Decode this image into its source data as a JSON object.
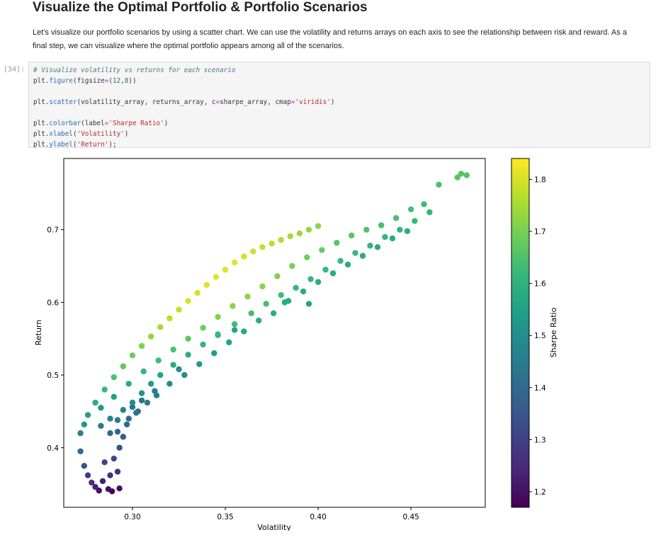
{
  "notebook": {
    "heading": "Visualize the Optimal Portfolio & Portfolio Scenarios",
    "paragraph": "Let's visualize our portfolio scenarios by using a scatter chart. We can use the volatility and returns arrays on each axis to see the relationship between risk and reward. As a final step, we can visualize where the optimal portfolio appears among all of the scenarios.",
    "cell_prompt": "[34]:",
    "code_lines": [
      "# Visualize volatility vs returns for each scenario",
      "plt.figure(figsize=(12,8))",
      "",
      "plt.scatter(volatility_array, returns_array, c=sharpe_array, cmap='viridis')",
      "",
      "plt.colorbar(label='Sharpe Ratio')",
      "plt.xlabel('Volatility')",
      "plt.ylabel('Return');"
    ]
  },
  "colors": {
    "viridis": [
      "#440154",
      "#482878",
      "#3e4989",
      "#31688e",
      "#26828e",
      "#1f9e89",
      "#35b779",
      "#6ece58",
      "#b5de2b",
      "#fde725"
    ]
  },
  "chart_data": {
    "type": "scatter",
    "title": "",
    "xlabel": "Volatility",
    "ylabel": "Return",
    "colorbar_label": "Sharpe Ratio",
    "colormap": "viridis",
    "xlim": [
      0.263,
      0.49
    ],
    "ylim": [
      0.318,
      0.798
    ],
    "clim": [
      1.17,
      1.84
    ],
    "xticks": [
      0.3,
      0.35,
      0.4,
      0.45
    ],
    "xtick_labels": [
      "0.30",
      "0.35",
      "0.40",
      "0.45"
    ],
    "yticks": [
      0.4,
      0.5,
      0.6,
      0.7
    ],
    "ytick_labels": [
      "0.4",
      "0.5",
      "0.6",
      "0.7"
    ],
    "cticks": [
      1.2,
      1.3,
      1.4,
      1.5,
      1.6,
      1.7,
      1.8
    ],
    "ctick_labels": [
      "1.2",
      "1.3",
      "1.4",
      "1.5",
      "1.6",
      "1.7",
      "1.8"
    ],
    "grid": false,
    "points": [
      {
        "x": 0.272,
        "y": 0.395,
        "c": 1.4
      },
      {
        "x": 0.274,
        "y": 0.375,
        "c": 1.34
      },
      {
        "x": 0.276,
        "y": 0.362,
        "c": 1.29
      },
      {
        "x": 0.278,
        "y": 0.352,
        "c": 1.26
      },
      {
        "x": 0.28,
        "y": 0.346,
        "c": 1.23
      },
      {
        "x": 0.282,
        "y": 0.341,
        "c": 1.2
      },
      {
        "x": 0.287,
        "y": 0.343,
        "c": 1.2
      },
      {
        "x": 0.289,
        "y": 0.34,
        "c": 1.18
      },
      {
        "x": 0.293,
        "y": 0.344,
        "c": 1.19
      },
      {
        "x": 0.284,
        "y": 0.354,
        "c": 1.23
      },
      {
        "x": 0.288,
        "y": 0.362,
        "c": 1.26
      },
      {
        "x": 0.292,
        "y": 0.367,
        "c": 1.27
      },
      {
        "x": 0.285,
        "y": 0.38,
        "c": 1.31
      },
      {
        "x": 0.29,
        "y": 0.385,
        "c": 1.31
      },
      {
        "x": 0.272,
        "y": 0.42,
        "c": 1.46
      },
      {
        "x": 0.274,
        "y": 0.432,
        "c": 1.52
      },
      {
        "x": 0.276,
        "y": 0.445,
        "c": 1.55
      },
      {
        "x": 0.28,
        "y": 0.462,
        "c": 1.59
      },
      {
        "x": 0.285,
        "y": 0.48,
        "c": 1.62
      },
      {
        "x": 0.29,
        "y": 0.497,
        "c": 1.65
      },
      {
        "x": 0.295,
        "y": 0.512,
        "c": 1.67
      },
      {
        "x": 0.3,
        "y": 0.527,
        "c": 1.69
      },
      {
        "x": 0.305,
        "y": 0.54,
        "c": 1.71
      },
      {
        "x": 0.31,
        "y": 0.553,
        "c": 1.73
      },
      {
        "x": 0.315,
        "y": 0.566,
        "c": 1.75
      },
      {
        "x": 0.32,
        "y": 0.578,
        "c": 1.77
      },
      {
        "x": 0.325,
        "y": 0.59,
        "c": 1.78
      },
      {
        "x": 0.33,
        "y": 0.602,
        "c": 1.8
      },
      {
        "x": 0.335,
        "y": 0.613,
        "c": 1.8
      },
      {
        "x": 0.34,
        "y": 0.624,
        "c": 1.81
      },
      {
        "x": 0.345,
        "y": 0.635,
        "c": 1.81
      },
      {
        "x": 0.35,
        "y": 0.645,
        "c": 1.81
      },
      {
        "x": 0.355,
        "y": 0.655,
        "c": 1.81
      },
      {
        "x": 0.36,
        "y": 0.663,
        "c": 1.8
      },
      {
        "x": 0.365,
        "y": 0.67,
        "c": 1.79
      },
      {
        "x": 0.37,
        "y": 0.676,
        "c": 1.78
      },
      {
        "x": 0.375,
        "y": 0.681,
        "c": 1.77
      },
      {
        "x": 0.38,
        "y": 0.686,
        "c": 1.76
      },
      {
        "x": 0.385,
        "y": 0.691,
        "c": 1.75
      },
      {
        "x": 0.39,
        "y": 0.695,
        "c": 1.74
      },
      {
        "x": 0.395,
        "y": 0.7,
        "c": 1.73
      },
      {
        "x": 0.4,
        "y": 0.705,
        "c": 1.72
      },
      {
        "x": 0.283,
        "y": 0.455,
        "c": 1.52
      },
      {
        "x": 0.29,
        "y": 0.47,
        "c": 1.55
      },
      {
        "x": 0.298,
        "y": 0.488,
        "c": 1.58
      },
      {
        "x": 0.306,
        "y": 0.505,
        "c": 1.61
      },
      {
        "x": 0.314,
        "y": 0.52,
        "c": 1.63
      },
      {
        "x": 0.322,
        "y": 0.535,
        "c": 1.65
      },
      {
        "x": 0.33,
        "y": 0.55,
        "c": 1.67
      },
      {
        "x": 0.338,
        "y": 0.565,
        "c": 1.69
      },
      {
        "x": 0.346,
        "y": 0.58,
        "c": 1.71
      },
      {
        "x": 0.354,
        "y": 0.595,
        "c": 1.72
      },
      {
        "x": 0.362,
        "y": 0.608,
        "c": 1.72
      },
      {
        "x": 0.37,
        "y": 0.622,
        "c": 1.72
      },
      {
        "x": 0.378,
        "y": 0.636,
        "c": 1.71
      },
      {
        "x": 0.386,
        "y": 0.65,
        "c": 1.7
      },
      {
        "x": 0.394,
        "y": 0.662,
        "c": 1.69
      },
      {
        "x": 0.402,
        "y": 0.672,
        "c": 1.68
      },
      {
        "x": 0.41,
        "y": 0.682,
        "c": 1.66
      },
      {
        "x": 0.418,
        "y": 0.692,
        "c": 1.66
      },
      {
        "x": 0.426,
        "y": 0.7,
        "c": 1.65
      },
      {
        "x": 0.434,
        "y": 0.706,
        "c": 1.64
      },
      {
        "x": 0.442,
        "y": 0.716,
        "c": 1.64
      },
      {
        "x": 0.45,
        "y": 0.728,
        "c": 1.64
      },
      {
        "x": 0.457,
        "y": 0.735,
        "c": 1.63
      },
      {
        "x": 0.465,
        "y": 0.762,
        "c": 1.65
      },
      {
        "x": 0.475,
        "y": 0.772,
        "c": 1.66
      },
      {
        "x": 0.477,
        "y": 0.777,
        "c": 1.66
      },
      {
        "x": 0.48,
        "y": 0.775,
        "c": 1.66
      },
      {
        "x": 0.283,
        "y": 0.43,
        "c": 1.45
      },
      {
        "x": 0.288,
        "y": 0.44,
        "c": 1.47
      },
      {
        "x": 0.292,
        "y": 0.438,
        "c": 1.45
      },
      {
        "x": 0.295,
        "y": 0.452,
        "c": 1.47
      },
      {
        "x": 0.3,
        "y": 0.462,
        "c": 1.49
      },
      {
        "x": 0.305,
        "y": 0.475,
        "c": 1.52
      },
      {
        "x": 0.31,
        "y": 0.488,
        "c": 1.54
      },
      {
        "x": 0.315,
        "y": 0.5,
        "c": 1.56
      },
      {
        "x": 0.322,
        "y": 0.514,
        "c": 1.58
      },
      {
        "x": 0.33,
        "y": 0.528,
        "c": 1.59
      },
      {
        "x": 0.338,
        "y": 0.542,
        "c": 1.61
      },
      {
        "x": 0.346,
        "y": 0.556,
        "c": 1.62
      },
      {
        "x": 0.355,
        "y": 0.57,
        "c": 1.63
      },
      {
        "x": 0.364,
        "y": 0.585,
        "c": 1.64
      },
      {
        "x": 0.372,
        "y": 0.598,
        "c": 1.64
      },
      {
        "x": 0.38,
        "y": 0.61,
        "c": 1.63
      },
      {
        "x": 0.388,
        "y": 0.62,
        "c": 1.62
      },
      {
        "x": 0.396,
        "y": 0.632,
        "c": 1.62
      },
      {
        "x": 0.404,
        "y": 0.645,
        "c": 1.62
      },
      {
        "x": 0.412,
        "y": 0.657,
        "c": 1.62
      },
      {
        "x": 0.42,
        "y": 0.668,
        "c": 1.62
      },
      {
        "x": 0.428,
        "y": 0.678,
        "c": 1.61
      },
      {
        "x": 0.436,
        "y": 0.69,
        "c": 1.61
      },
      {
        "x": 0.444,
        "y": 0.7,
        "c": 1.61
      },
      {
        "x": 0.452,
        "y": 0.712,
        "c": 1.62
      },
      {
        "x": 0.46,
        "y": 0.724,
        "c": 1.62
      },
      {
        "x": 0.288,
        "y": 0.42,
        "c": 1.4
      },
      {
        "x": 0.292,
        "y": 0.422,
        "c": 1.39
      },
      {
        "x": 0.295,
        "y": 0.415,
        "c": 1.36
      },
      {
        "x": 0.293,
        "y": 0.4,
        "c": 1.34
      },
      {
        "x": 0.298,
        "y": 0.44,
        "c": 1.42
      },
      {
        "x": 0.303,
        "y": 0.45,
        "c": 1.43
      },
      {
        "x": 0.308,
        "y": 0.462,
        "c": 1.45
      },
      {
        "x": 0.313,
        "y": 0.472,
        "c": 1.46
      },
      {
        "x": 0.32,
        "y": 0.488,
        "c": 1.49
      },
      {
        "x": 0.328,
        "y": 0.5,
        "c": 1.5
      },
      {
        "x": 0.336,
        "y": 0.515,
        "c": 1.52
      },
      {
        "x": 0.344,
        "y": 0.53,
        "c": 1.54
      },
      {
        "x": 0.352,
        "y": 0.545,
        "c": 1.56
      },
      {
        "x": 0.36,
        "y": 0.56,
        "c": 1.57
      },
      {
        "x": 0.368,
        "y": 0.575,
        "c": 1.58
      },
      {
        "x": 0.376,
        "y": 0.585,
        "c": 1.58
      },
      {
        "x": 0.384,
        "y": 0.602,
        "c": 1.58
      },
      {
        "x": 0.392,
        "y": 0.615,
        "c": 1.58
      },
      {
        "x": 0.4,
        "y": 0.628,
        "c": 1.58
      },
      {
        "x": 0.408,
        "y": 0.64,
        "c": 1.58
      },
      {
        "x": 0.416,
        "y": 0.652,
        "c": 1.58
      },
      {
        "x": 0.424,
        "y": 0.664,
        "c": 1.58
      },
      {
        "x": 0.432,
        "y": 0.676,
        "c": 1.58
      },
      {
        "x": 0.44,
        "y": 0.688,
        "c": 1.58
      },
      {
        "x": 0.448,
        "y": 0.698,
        "c": 1.58
      },
      {
        "x": 0.395,
        "y": 0.598,
        "c": 1.56
      },
      {
        "x": 0.382,
        "y": 0.6,
        "c": 1.58
      },
      {
        "x": 0.355,
        "y": 0.562,
        "c": 1.56
      },
      {
        "x": 0.346,
        "y": 0.555,
        "c": 1.55
      },
      {
        "x": 0.325,
        "y": 0.508,
        "c": 1.5
      },
      {
        "x": 0.312,
        "y": 0.478,
        "c": 1.46
      },
      {
        "x": 0.305,
        "y": 0.465,
        "c": 1.44
      },
      {
        "x": 0.3,
        "y": 0.456,
        "c": 1.43
      },
      {
        "x": 0.297,
        "y": 0.432,
        "c": 1.4
      },
      {
        "x": 0.302,
        "y": 0.448,
        "c": 1.42
      }
    ]
  }
}
